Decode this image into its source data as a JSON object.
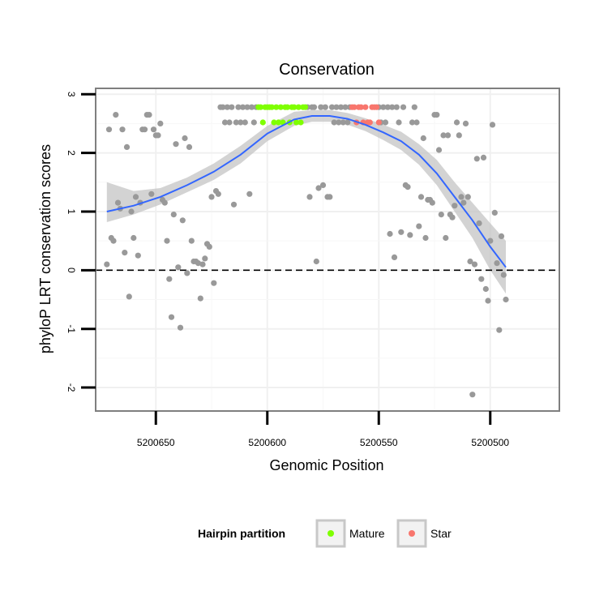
{
  "chart_data": {
    "type": "scatter",
    "title": "Conservation",
    "xlabel": "Genomic Position",
    "ylabel": "phyloP LRT conservation scores",
    "xlim": [
      5200677,
      5200469
    ],
    "x_reversed": true,
    "ylim": [
      -2.4,
      3.1
    ],
    "x_ticks": [
      5200650,
      5200600,
      5200550,
      5200500
    ],
    "y_ticks": [
      -2,
      -1,
      0,
      1,
      2,
      3
    ],
    "x_tick_labels": [
      "5200650",
      "5200600",
      "5200550",
      "5200500"
    ],
    "y_tick_labels": [
      "-2",
      "-1",
      "0",
      "1",
      "2",
      "3"
    ],
    "grid": true,
    "reference_line": {
      "y": 0,
      "style": "dashed",
      "color": "#000000"
    },
    "colors": {
      "Other": "#999999",
      "Mature": "#7FFF00",
      "Star": "#F8766D",
      "smooth": "#3366FF",
      "ribbon": "#C0C0C0",
      "panel_border": "#7F7F7F"
    },
    "legend": {
      "title": "Hairpin partition",
      "position": "bottom",
      "entries": [
        {
          "label": "Mature",
          "color": "#7FFF00"
        },
        {
          "label": "Star",
          "color": "#F8766D"
        }
      ]
    },
    "series": [
      {
        "name": "Other",
        "points": [
          [
            5200672,
            0.1
          ],
          [
            5200671,
            2.4
          ],
          [
            5200670,
            0.55
          ],
          [
            5200669,
            0.5
          ],
          [
            5200668,
            2.65
          ],
          [
            5200667,
            1.15
          ],
          [
            5200666,
            1.05
          ],
          [
            5200665,
            2.4
          ],
          [
            5200664,
            0.3
          ],
          [
            5200663,
            2.1
          ],
          [
            5200662,
            -0.45
          ],
          [
            5200661,
            1.0
          ],
          [
            5200660,
            0.55
          ],
          [
            5200659,
            1.25
          ],
          [
            5200658,
            0.25
          ],
          [
            5200657,
            1.15
          ],
          [
            5200656,
            2.4
          ],
          [
            5200655,
            2.4
          ],
          [
            5200654,
            2.65
          ],
          [
            5200653,
            2.65
          ],
          [
            5200652,
            1.3
          ],
          [
            5200651,
            2.4
          ],
          [
            5200650,
            2.3
          ],
          [
            5200649,
            2.3
          ],
          [
            5200648,
            2.5
          ],
          [
            5200647,
            1.2
          ],
          [
            5200646,
            1.15
          ],
          [
            5200645,
            0.5
          ],
          [
            5200644,
            -0.15
          ],
          [
            5200643,
            -0.8
          ],
          [
            5200642,
            0.95
          ],
          [
            5200641,
            2.15
          ],
          [
            5200640,
            0.05
          ],
          [
            5200639,
            -0.98
          ],
          [
            5200638,
            0.85
          ],
          [
            5200637,
            2.25
          ],
          [
            5200636,
            -0.05
          ],
          [
            5200635,
            2.1
          ],
          [
            5200634,
            0.5
          ],
          [
            5200633,
            0.15
          ],
          [
            5200632,
            0.15
          ],
          [
            5200631,
            0.12
          ],
          [
            5200630,
            -0.48
          ],
          [
            5200629,
            0.1
          ],
          [
            5200628,
            0.2
          ],
          [
            5200627,
            0.45
          ],
          [
            5200626,
            0.4
          ],
          [
            5200625,
            1.25
          ],
          [
            5200624,
            -0.22
          ],
          [
            5200623,
            1.35
          ],
          [
            5200622,
            1.3
          ],
          [
            5200621,
            2.78
          ],
          [
            5200620,
            2.78
          ],
          [
            5200619,
            2.52
          ],
          [
            5200618,
            2.78
          ],
          [
            5200617,
            2.52
          ],
          [
            5200616,
            2.78
          ],
          [
            5200615,
            1.12
          ],
          [
            5200614,
            2.52
          ],
          [
            5200613,
            2.78
          ],
          [
            5200612,
            2.52
          ],
          [
            5200611,
            2.78
          ],
          [
            5200610,
            2.52
          ],
          [
            5200609,
            2.78
          ],
          [
            5200608,
            1.3
          ],
          [
            5200607,
            2.78
          ],
          [
            5200606,
            2.52
          ],
          [
            5200605,
            2.78
          ],
          [
            5200582,
            2.78
          ],
          [
            5200581,
            1.25
          ],
          [
            5200580,
            2.78
          ],
          [
            5200579,
            2.78
          ],
          [
            5200578,
            0.15
          ],
          [
            5200577,
            1.4
          ],
          [
            5200576,
            2.78
          ],
          [
            5200575,
            1.45
          ],
          [
            5200574,
            2.78
          ],
          [
            5200573,
            1.25
          ],
          [
            5200572,
            1.25
          ],
          [
            5200571,
            2.78
          ],
          [
            5200570,
            2.52
          ],
          [
            5200569,
            2.78
          ],
          [
            5200568,
            2.52
          ],
          [
            5200567,
            2.78
          ],
          [
            5200566,
            2.52
          ],
          [
            5200565,
            2.78
          ],
          [
            5200564,
            2.52
          ],
          [
            5200563,
            2.78
          ],
          [
            5200550,
            2.78
          ],
          [
            5200549,
            2.52
          ],
          [
            5200548,
            2.78
          ],
          [
            5200547,
            2.52
          ],
          [
            5200546,
            2.78
          ],
          [
            5200545,
            0.62
          ],
          [
            5200544,
            2.78
          ],
          [
            5200543,
            0.22
          ],
          [
            5200542,
            2.78
          ],
          [
            5200541,
            2.52
          ],
          [
            5200540,
            0.65
          ],
          [
            5200539,
            2.78
          ],
          [
            5200538,
            1.45
          ],
          [
            5200537,
            1.42
          ],
          [
            5200536,
            0.6
          ],
          [
            5200535,
            2.52
          ],
          [
            5200534,
            2.78
          ],
          [
            5200533,
            2.52
          ],
          [
            5200532,
            0.75
          ],
          [
            5200531,
            1.25
          ],
          [
            5200530,
            2.25
          ],
          [
            5200529,
            0.55
          ],
          [
            5200528,
            1.2
          ],
          [
            5200527,
            1.2
          ],
          [
            5200526,
            1.15
          ],
          [
            5200525,
            2.65
          ],
          [
            5200524,
            2.65
          ],
          [
            5200523,
            2.05
          ],
          [
            5200522,
            0.95
          ],
          [
            5200521,
            2.3
          ],
          [
            5200520,
            0.55
          ],
          [
            5200519,
            2.3
          ],
          [
            5200518,
            0.95
          ],
          [
            5200517,
            0.9
          ],
          [
            5200516,
            1.1
          ],
          [
            5200515,
            2.52
          ],
          [
            5200514,
            2.3
          ],
          [
            5200513,
            1.25
          ],
          [
            5200512,
            1.15
          ],
          [
            5200511,
            2.5
          ],
          [
            5200510,
            1.25
          ],
          [
            5200509,
            0.15
          ],
          [
            5200508,
            -2.12
          ],
          [
            5200507,
            0.1
          ],
          [
            5200506,
            1.9
          ],
          [
            5200505,
            0.8
          ],
          [
            5200504,
            -0.15
          ],
          [
            5200503,
            1.92
          ],
          [
            5200502,
            -0.32
          ],
          [
            5200501,
            -0.52
          ],
          [
            5200500,
            0.5
          ],
          [
            5200499,
            2.48
          ],
          [
            5200498,
            0.98
          ],
          [
            5200497,
            0.12
          ],
          [
            5200496,
            -1.02
          ],
          [
            5200495,
            0.58
          ],
          [
            5200494,
            -0.08
          ],
          [
            5200493,
            -0.5
          ]
        ]
      },
      {
        "name": "Mature",
        "points": [
          [
            5200604,
            2.78
          ],
          [
            5200603,
            2.78
          ],
          [
            5200602,
            2.52
          ],
          [
            5200601,
            2.78
          ],
          [
            5200600,
            2.78
          ],
          [
            5200599,
            2.78
          ],
          [
            5200598,
            2.78
          ],
          [
            5200597,
            2.52
          ],
          [
            5200596,
            2.78
          ],
          [
            5200595,
            2.52
          ],
          [
            5200594,
            2.78
          ],
          [
            5200593,
            2.52
          ],
          [
            5200592,
            2.78
          ],
          [
            5200591,
            2.78
          ],
          [
            5200590,
            2.52
          ],
          [
            5200589,
            2.78
          ],
          [
            5200588,
            2.78
          ],
          [
            5200587,
            2.52
          ],
          [
            5200586,
            2.78
          ],
          [
            5200585,
            2.52
          ],
          [
            5200584,
            2.78
          ],
          [
            5200583,
            2.78
          ]
        ]
      },
      {
        "name": "Star",
        "points": [
          [
            5200562,
            2.78
          ],
          [
            5200561,
            2.78
          ],
          [
            5200560,
            2.52
          ],
          [
            5200559,
            2.78
          ],
          [
            5200558,
            2.78
          ],
          [
            5200557,
            2.52
          ],
          [
            5200556,
            2.78
          ],
          [
            5200555,
            2.52
          ],
          [
            5200554,
            2.52
          ],
          [
            5200553,
            2.78
          ],
          [
            5200552,
            2.78
          ],
          [
            5200551,
            2.78
          ],
          [
            5200550,
            2.52
          ]
        ]
      }
    ],
    "smooth": {
      "x": [
        5200672,
        5200660,
        5200648,
        5200636,
        5200624,
        5200612,
        5200600,
        5200588,
        5200580,
        5200572,
        5200564,
        5200556,
        5200548,
        5200540,
        5200532,
        5200524,
        5200516,
        5200508,
        5200500,
        5200493
      ],
      "y": [
        1.0,
        1.1,
        1.25,
        1.45,
        1.68,
        1.97,
        2.33,
        2.57,
        2.63,
        2.63,
        2.58,
        2.48,
        2.35,
        2.2,
        1.97,
        1.65,
        1.25,
        0.85,
        0.4,
        0.05
      ],
      "lower": [
        0.82,
        0.95,
        1.12,
        1.33,
        1.54,
        1.82,
        2.2,
        2.46,
        2.53,
        2.53,
        2.48,
        2.37,
        2.22,
        2.05,
        1.8,
        1.45,
        1.0,
        0.55,
        0.0,
        -0.4
      ],
      "upper": [
        1.5,
        1.35,
        1.4,
        1.58,
        1.82,
        2.12,
        2.46,
        2.7,
        2.73,
        2.73,
        2.68,
        2.59,
        2.48,
        2.36,
        2.15,
        1.88,
        1.5,
        1.15,
        0.8,
        0.5
      ]
    }
  }
}
